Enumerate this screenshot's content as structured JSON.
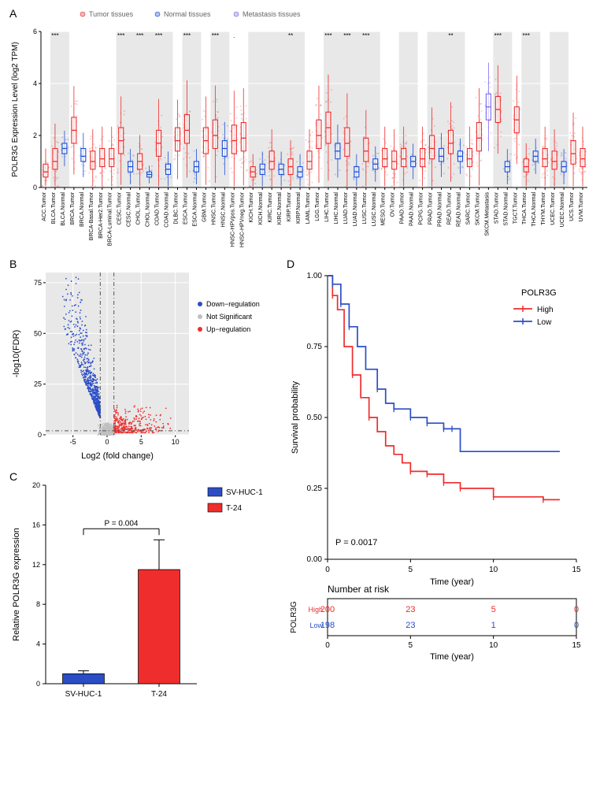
{
  "colors": {
    "tumor": "#ee2c2c",
    "normal": "#1d4ed8",
    "metastasis": "#7b68ee",
    "grey_point": "#b0b0b0",
    "panel_bg": "#e8e8e8",
    "panel_alt": "#ffffff",
    "grid": "#ffffff",
    "axis": "#000000",
    "svhuc": "#2b4ec7",
    "t24": "#ef2d2d",
    "km_high": "#ef2d2d",
    "km_low": "#2b4ec7",
    "volcano_up": "#ef2d2d",
    "volcano_down": "#2b4ec7",
    "volcano_ns": "#c0c0c0"
  },
  "panel_a": {
    "label": "A",
    "ylabel": "POLR3G Expression Level (log2 TPM)",
    "ylim": [
      0,
      6
    ],
    "ytick_step": 2,
    "legend": [
      {
        "label": "Tumor tissues",
        "color": "#ee2c2c"
      },
      {
        "label": "Normal tissues",
        "color": "#1d4ed8"
      },
      {
        "label": "Metastasis tissues",
        "color": "#7b68ee"
      }
    ],
    "groups": [
      {
        "name": "ACC.Tumor",
        "type": "tumor",
        "median": 0.6,
        "q1": 0.4,
        "q3": 0.9,
        "shade": false,
        "sig": ""
      },
      {
        "name": "BLCA.Tumor",
        "type": "tumor",
        "median": 1.0,
        "q1": 0.7,
        "q3": 1.5,
        "shade": true,
        "sig": "***"
      },
      {
        "name": "BLCA.Normal",
        "type": "normal",
        "median": 1.5,
        "q1": 1.3,
        "q3": 1.7,
        "shade": true,
        "sig": ""
      },
      {
        "name": "BRCA.Tumor",
        "type": "tumor",
        "median": 2.2,
        "q1": 1.7,
        "q3": 2.7,
        "shade": false,
        "sig": ""
      },
      {
        "name": "BRCA.Normal",
        "type": "normal",
        "median": 1.2,
        "q1": 1.0,
        "q3": 1.5,
        "shade": false,
        "sig": ""
      },
      {
        "name": "BRCA-Basal.Tumor",
        "type": "tumor",
        "median": 1.0,
        "q1": 0.7,
        "q3": 1.4,
        "shade": false,
        "sig": ""
      },
      {
        "name": "BRCA-Her2.Tumor",
        "type": "tumor",
        "median": 1.1,
        "q1": 0.8,
        "q3": 1.5,
        "shade": false,
        "sig": ""
      },
      {
        "name": "BRCA-Luminal.Tumor",
        "type": "tumor",
        "median": 1.1,
        "q1": 0.8,
        "q3": 1.5,
        "shade": false,
        "sig": ""
      },
      {
        "name": "CESC.Tumor",
        "type": "tumor",
        "median": 1.8,
        "q1": 1.3,
        "q3": 2.3,
        "shade": true,
        "sig": "***"
      },
      {
        "name": "CESC.Normal",
        "type": "normal",
        "median": 0.8,
        "q1": 0.6,
        "q3": 1.0,
        "shade": true,
        "sig": ""
      },
      {
        "name": "CHOL.Tumor",
        "type": "tumor",
        "median": 1.0,
        "q1": 0.7,
        "q3": 1.3,
        "shade": true,
        "sig": "***"
      },
      {
        "name": "CHOL.Normal",
        "type": "normal",
        "median": 0.5,
        "q1": 0.4,
        "q3": 0.6,
        "shade": true,
        "sig": ""
      },
      {
        "name": "COAD.Tumor",
        "type": "tumor",
        "median": 1.7,
        "q1": 1.2,
        "q3": 2.2,
        "shade": true,
        "sig": "***"
      },
      {
        "name": "COAD.Normal",
        "type": "normal",
        "median": 0.7,
        "q1": 0.5,
        "q3": 0.9,
        "shade": true,
        "sig": ""
      },
      {
        "name": "DLBC.Tumor",
        "type": "tumor",
        "median": 1.8,
        "q1": 1.4,
        "q3": 2.3,
        "shade": false,
        "sig": ""
      },
      {
        "name": "ESCA.Tumor",
        "type": "tumor",
        "median": 2.2,
        "q1": 1.7,
        "q3": 2.8,
        "shade": true,
        "sig": "***"
      },
      {
        "name": "ESCA.Normal",
        "type": "normal",
        "median": 0.8,
        "q1": 0.6,
        "q3": 1.0,
        "shade": true,
        "sig": ""
      },
      {
        "name": "GBM.Tumor",
        "type": "tumor",
        "median": 1.8,
        "q1": 1.3,
        "q3": 2.3,
        "shade": false,
        "sig": ""
      },
      {
        "name": "HNSC.Tumor",
        "type": "tumor",
        "median": 2.0,
        "q1": 1.5,
        "q3": 2.6,
        "shade": true,
        "sig": "***"
      },
      {
        "name": "HNSC.Normal",
        "type": "normal",
        "median": 1.5,
        "q1": 1.2,
        "q3": 1.8,
        "shade": true,
        "sig": ""
      },
      {
        "name": "HNSC-HPVpos.Tumor",
        "type": "tumor",
        "median": 1.8,
        "q1": 1.3,
        "q3": 2.4,
        "shade": false,
        "sig": "."
      },
      {
        "name": "HNSC-HPVneg.Tumor",
        "type": "tumor",
        "median": 1.9,
        "q1": 1.4,
        "q3": 2.5,
        "shade": false,
        "sig": ""
      },
      {
        "name": "KICH.Tumor",
        "type": "tumor",
        "median": 0.6,
        "q1": 0.4,
        "q3": 0.8,
        "shade": true,
        "sig": ""
      },
      {
        "name": "KICH.Normal",
        "type": "normal",
        "median": 0.7,
        "q1": 0.5,
        "q3": 0.9,
        "shade": true,
        "sig": ""
      },
      {
        "name": "KIRC.Tumor",
        "type": "tumor",
        "median": 1.0,
        "q1": 0.7,
        "q3": 1.4,
        "shade": true,
        "sig": ""
      },
      {
        "name": "KIRC.Normal",
        "type": "normal",
        "median": 0.7,
        "q1": 0.5,
        "q3": 0.9,
        "shade": true,
        "sig": ""
      },
      {
        "name": "KIRP.Tumor",
        "type": "tumor",
        "median": 0.8,
        "q1": 0.5,
        "q3": 1.1,
        "shade": true,
        "sig": "**"
      },
      {
        "name": "KIRP.Normal",
        "type": "normal",
        "median": 0.6,
        "q1": 0.4,
        "q3": 0.8,
        "shade": true,
        "sig": ""
      },
      {
        "name": "LAML.Tumor",
        "type": "tumor",
        "median": 1.0,
        "q1": 0.7,
        "q3": 1.4,
        "shade": false,
        "sig": ""
      },
      {
        "name": "LGG.Tumor",
        "type": "tumor",
        "median": 2.0,
        "q1": 1.5,
        "q3": 2.6,
        "shade": false,
        "sig": ""
      },
      {
        "name": "LIHC.Tumor",
        "type": "tumor",
        "median": 2.3,
        "q1": 1.7,
        "q3": 2.9,
        "shade": true,
        "sig": "***"
      },
      {
        "name": "LIHC.Normal",
        "type": "normal",
        "median": 1.4,
        "q1": 1.1,
        "q3": 1.7,
        "shade": true,
        "sig": ""
      },
      {
        "name": "LUAD.Tumor",
        "type": "tumor",
        "median": 1.7,
        "q1": 1.2,
        "q3": 2.3,
        "shade": true,
        "sig": "***"
      },
      {
        "name": "LUAD.Normal",
        "type": "normal",
        "median": 0.6,
        "q1": 0.4,
        "q3": 0.8,
        "shade": true,
        "sig": ""
      },
      {
        "name": "LUSC.Tumor",
        "type": "tumor",
        "median": 1.4,
        "q1": 1.0,
        "q3": 1.9,
        "shade": true,
        "sig": "***"
      },
      {
        "name": "LUSC.Normal",
        "type": "normal",
        "median": 0.9,
        "q1": 0.7,
        "q3": 1.1,
        "shade": true,
        "sig": ""
      },
      {
        "name": "MESO.Tumor",
        "type": "tumor",
        "median": 1.1,
        "q1": 0.8,
        "q3": 1.5,
        "shade": false,
        "sig": ""
      },
      {
        "name": "OV.Tumor",
        "type": "tumor",
        "median": 1.0,
        "q1": 0.7,
        "q3": 1.4,
        "shade": false,
        "sig": ""
      },
      {
        "name": "PAAD.Tumor",
        "type": "tumor",
        "median": 1.1,
        "q1": 0.8,
        "q3": 1.5,
        "shade": true,
        "sig": ""
      },
      {
        "name": "PAAD.Normal",
        "type": "normal",
        "median": 1.0,
        "q1": 0.8,
        "q3": 1.2,
        "shade": true,
        "sig": ""
      },
      {
        "name": "PCPG.Tumor",
        "type": "tumor",
        "median": 1.1,
        "q1": 0.8,
        "q3": 1.5,
        "shade": false,
        "sig": ""
      },
      {
        "name": "PRAD.Tumor",
        "type": "tumor",
        "median": 1.5,
        "q1": 1.1,
        "q3": 2.0,
        "shade": true,
        "sig": ""
      },
      {
        "name": "PRAD.Normal",
        "type": "normal",
        "median": 1.2,
        "q1": 1.0,
        "q3": 1.5,
        "shade": true,
        "sig": ""
      },
      {
        "name": "READ.Tumor",
        "type": "tumor",
        "median": 1.7,
        "q1": 1.3,
        "q3": 2.2,
        "shade": true,
        "sig": "**"
      },
      {
        "name": "READ.Normal",
        "type": "normal",
        "median": 1.2,
        "q1": 1.0,
        "q3": 1.4,
        "shade": true,
        "sig": ""
      },
      {
        "name": "SARC.Tumor",
        "type": "tumor",
        "median": 1.1,
        "q1": 0.8,
        "q3": 1.5,
        "shade": false,
        "sig": ""
      },
      {
        "name": "SKCM.Tumor",
        "type": "tumor",
        "median": 1.9,
        "q1": 1.4,
        "q3": 2.5,
        "shade": false,
        "sig": ""
      },
      {
        "name": "SKCM.Metastasis",
        "type": "metastasis",
        "median": 3.1,
        "q1": 2.6,
        "q3": 3.6,
        "shade": false,
        "sig": ""
      },
      {
        "name": "STAD.Tumor",
        "type": "tumor",
        "median": 3.0,
        "q1": 2.5,
        "q3": 3.5,
        "shade": true,
        "sig": "***"
      },
      {
        "name": "STAD.Normal",
        "type": "normal",
        "median": 0.8,
        "q1": 0.6,
        "q3": 1.0,
        "shade": true,
        "sig": ""
      },
      {
        "name": "TGCT.Tumor",
        "type": "tumor",
        "median": 2.6,
        "q1": 2.1,
        "q3": 3.1,
        "shade": false,
        "sig": ""
      },
      {
        "name": "THCA.Tumor",
        "type": "tumor",
        "median": 0.8,
        "q1": 0.6,
        "q3": 1.1,
        "shade": true,
        "sig": "***"
      },
      {
        "name": "THCA.Normal",
        "type": "normal",
        "median": 1.2,
        "q1": 1.0,
        "q3": 1.4,
        "shade": true,
        "sig": ""
      },
      {
        "name": "THYM.Tumor",
        "type": "tumor",
        "median": 1.1,
        "q1": 0.8,
        "q3": 1.5,
        "shade": false,
        "sig": ""
      },
      {
        "name": "UCEC.Tumor",
        "type": "tumor",
        "median": 1.0,
        "q1": 0.7,
        "q3": 1.4,
        "shade": true,
        "sig": ""
      },
      {
        "name": "UCEC.Normal",
        "type": "normal",
        "median": 0.8,
        "q1": 0.6,
        "q3": 1.0,
        "shade": true,
        "sig": ""
      },
      {
        "name": "UCS.Tumor",
        "type": "tumor",
        "median": 1.3,
        "q1": 0.9,
        "q3": 1.8,
        "shade": false,
        "sig": ""
      },
      {
        "name": "UVM.Tumor",
        "type": "tumor",
        "median": 1.1,
        "q1": 0.8,
        "q3": 1.5,
        "shade": false,
        "sig": ""
      }
    ]
  },
  "panel_b": {
    "label": "B",
    "xlabel": "Log2 (fold change)",
    "ylabel": "-log10(FDR)",
    "xlim": [
      -9,
      12
    ],
    "ylim": [
      0,
      80
    ],
    "xticks": [
      -5,
      0,
      5,
      10
    ],
    "yticks": [
      0,
      25,
      50,
      75
    ],
    "legend": [
      {
        "label": "Down−regulation",
        "color": "#2b4ec7"
      },
      {
        "label": "Not Significant",
        "color": "#c0c0c0"
      },
      {
        "label": "Up−regulation",
        "color": "#ef2d2d"
      }
    ],
    "thresholds": {
      "fc": 1,
      "y": 2
    }
  },
  "panel_c": {
    "label": "C",
    "ylabel": "Relative POLR3G expression",
    "ylim": [
      0,
      20
    ],
    "ytick_step": 4,
    "pvalue": "P = 0.004",
    "bars": [
      {
        "name": "SV-HUC-1",
        "value": 1.0,
        "err": 0.3,
        "color": "#2b4ec7"
      },
      {
        "name": "T-24",
        "value": 11.5,
        "err": 3.0,
        "color": "#ef2d2d"
      }
    ],
    "legend": [
      {
        "label": "SV-HUC-1",
        "color": "#2b4ec7"
      },
      {
        "label": "T-24",
        "color": "#ef2d2d"
      }
    ]
  },
  "panel_d": {
    "label": "D",
    "xlabel": "Time (year)",
    "ylabel": "Survival probability",
    "xlim": [
      0,
      15
    ],
    "ylim": [
      0,
      1.0
    ],
    "xtick_step": 5,
    "ytick_step": 0.25,
    "pvalue": "P = 0.0017",
    "legend_title": "POLR3G",
    "series": [
      {
        "name": "High",
        "color": "#ef2d2d",
        "points": [
          [
            0,
            1.0
          ],
          [
            0.3,
            0.93
          ],
          [
            0.6,
            0.88
          ],
          [
            1,
            0.75
          ],
          [
            1.5,
            0.65
          ],
          [
            2,
            0.57
          ],
          [
            2.5,
            0.5
          ],
          [
            3,
            0.45
          ],
          [
            3.5,
            0.4
          ],
          [
            4,
            0.37
          ],
          [
            4.5,
            0.34
          ],
          [
            5,
            0.31
          ],
          [
            6,
            0.3
          ],
          [
            7,
            0.27
          ],
          [
            8,
            0.25
          ],
          [
            10,
            0.22
          ],
          [
            13,
            0.21
          ],
          [
            14,
            0.21
          ]
        ]
      },
      {
        "name": "Low",
        "color": "#2b4ec7",
        "points": [
          [
            0,
            1.0
          ],
          [
            0.3,
            0.97
          ],
          [
            0.8,
            0.9
          ],
          [
            1.3,
            0.82
          ],
          [
            1.8,
            0.75
          ],
          [
            2.3,
            0.67
          ],
          [
            3,
            0.6
          ],
          [
            3.5,
            0.55
          ],
          [
            4,
            0.53
          ],
          [
            5,
            0.5
          ],
          [
            6,
            0.48
          ],
          [
            7,
            0.46
          ],
          [
            7.5,
            0.46
          ],
          [
            8,
            0.38
          ],
          [
            10,
            0.38
          ],
          [
            14,
            0.38
          ]
        ]
      }
    ],
    "risk_title": "Number at risk",
    "risk_xlabel": "Time (year)",
    "risk_ylabel": "POLR3G",
    "risk_xticks": [
      0,
      5,
      10,
      15
    ],
    "risk_rows": [
      {
        "name": "High",
        "color": "#ef2d2d",
        "values": [
          200,
          23,
          5,
          0
        ]
      },
      {
        "name": "Low",
        "color": "#2b4ec7",
        "values": [
          198,
          23,
          1,
          0
        ]
      }
    ]
  }
}
